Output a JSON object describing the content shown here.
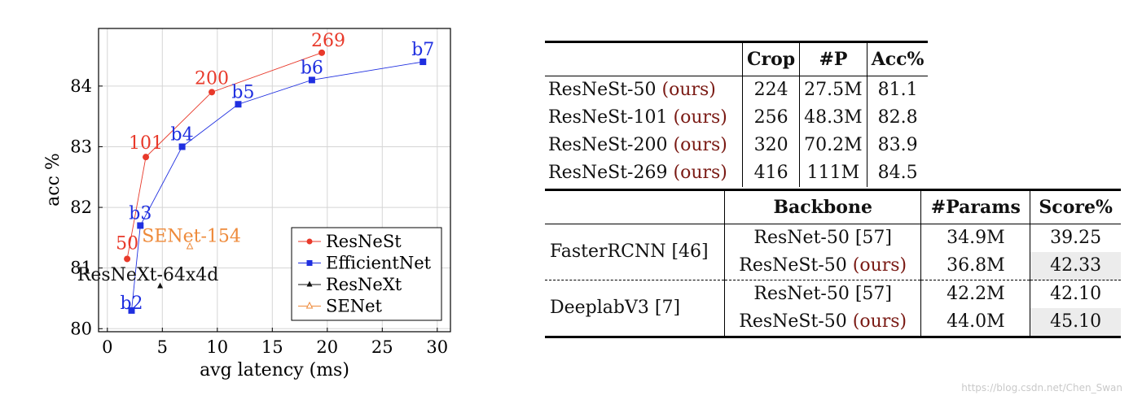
{
  "chart_data": {
    "type": "line",
    "title": "",
    "xlabel": "avg latency (ms)",
    "ylabel": "acc %",
    "xlim": [
      -0.8,
      31.2
    ],
    "ylim": [
      79.95,
      84.95
    ],
    "xticks": [
      0,
      5,
      10,
      15,
      20,
      25,
      30
    ],
    "yticks": [
      80,
      81,
      82,
      83,
      84
    ],
    "grid": true,
    "legend_position": "bottom-right",
    "series": [
      {
        "name": "ResNeSt",
        "color": "#e8392a",
        "marker": "circle",
        "x": [
          1.8,
          3.5,
          9.5,
          19.5
        ],
        "y": [
          81.15,
          82.83,
          83.9,
          84.55
        ],
        "labels": [
          "50",
          "101",
          "200",
          "269"
        ]
      },
      {
        "name": "EfficientNet",
        "color": "#1f2fe0",
        "marker": "square",
        "x": [
          2.2,
          3.0,
          6.8,
          11.9,
          18.6,
          28.7
        ],
        "y": [
          80.3,
          81.7,
          83.0,
          83.7,
          84.1,
          84.4
        ],
        "labels": [
          "b2",
          "b3",
          "b4",
          "b5",
          "b6",
          "b7"
        ]
      },
      {
        "name": "ResNeXt",
        "color": "#111111",
        "marker": "triangle",
        "x": [
          4.8
        ],
        "y": [
          80.7
        ],
        "labels": [
          "ResNeXt-64x4d"
        ]
      },
      {
        "name": "SENet",
        "color": "#ee8a3a",
        "marker": "triangle-open",
        "x": [
          7.5
        ],
        "y": [
          81.35
        ],
        "labels": [
          "SENet-154"
        ]
      }
    ]
  },
  "table1": {
    "headers": [
      "",
      "Crop",
      "#P",
      "Acc%"
    ],
    "ours_label": "(ours)",
    "rows": [
      {
        "model": "ResNeSt-50",
        "crop": "224",
        "params": "27.5M",
        "acc": "81.1"
      },
      {
        "model": "ResNeSt-101",
        "crop": "256",
        "params": "48.3M",
        "acc": "82.8"
      },
      {
        "model": "ResNeSt-200",
        "crop": "320",
        "params": "70.2M",
        "acc": "83.9"
      },
      {
        "model": "ResNeSt-269",
        "crop": "416",
        "params": "111M",
        "acc": "84.5"
      }
    ]
  },
  "table2": {
    "headers": [
      "",
      "Backbone",
      "#Params",
      "Score%"
    ],
    "groups": [
      {
        "name": "FasterRCNN [46]",
        "rows": [
          {
            "backbone": "ResNet-50 [57]",
            "ours": "",
            "params": "34.9M",
            "score": "39.25",
            "highlight": false
          },
          {
            "backbone": "ResNeSt-50",
            "ours": "(ours)",
            "params": "36.8M",
            "score": "42.33",
            "highlight": true
          }
        ]
      },
      {
        "name": "DeeplabV3 [7]",
        "rows": [
          {
            "backbone": "ResNet-50 [57]",
            "ours": "",
            "params": "42.2M",
            "score": "42.10",
            "highlight": false
          },
          {
            "backbone": "ResNeSt-50",
            "ours": "(ours)",
            "params": "44.0M",
            "score": "45.10",
            "highlight": true
          }
        ]
      }
    ]
  },
  "watermark": "https://blog.csdn.net/Chen_Swan"
}
